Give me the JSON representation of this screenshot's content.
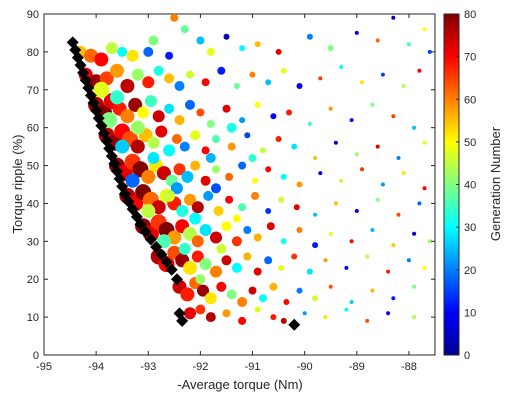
{
  "chart_data": {
    "type": "scatter",
    "xlabel": "-Average torque (Nm)",
    "ylabel": "Torque ripple (%)",
    "xlim": [
      -95,
      -87.5
    ],
    "ylim": [
      0,
      90
    ],
    "xticks": [
      -95,
      -94,
      -93,
      -92,
      -91,
      -90,
      -89,
      -88
    ],
    "xtick_labels": [
      "-95",
      "-94",
      "-93",
      "-92",
      "-91",
      "-90",
      "-89",
      "-88"
    ],
    "yticks": [
      0,
      10,
      20,
      30,
      40,
      50,
      60,
      70,
      80,
      90
    ],
    "ytick_labels": [
      "0",
      "10",
      "20",
      "30",
      "40",
      "50",
      "60",
      "70",
      "80",
      "90"
    ],
    "grid": false,
    "colorbar": {
      "label": "Generation Number",
      "range": [
        0,
        80
      ],
      "ticks": [
        0,
        10,
        20,
        30,
        40,
        50,
        60,
        70,
        80
      ],
      "tick_labels": [
        "0",
        "10",
        "20",
        "30",
        "40",
        "50",
        "60",
        "70",
        "80"
      ],
      "colormap": "jet"
    },
    "pareto_front": {
      "marker": "diamond",
      "color": "#000000",
      "points": [
        [
          -94.45,
          82.5
        ],
        [
          -94.4,
          80.5
        ],
        [
          -94.35,
          78.5
        ],
        [
          -94.3,
          76.5
        ],
        [
          -94.25,
          74.5
        ],
        [
          -94.2,
          72.5
        ],
        [
          -94.15,
          70.5
        ],
        [
          -94.1,
          68.5
        ],
        [
          -94.05,
          66.5
        ],
        [
          -94.0,
          64.5
        ],
        [
          -93.95,
          62.5
        ],
        [
          -93.9,
          60.5
        ],
        [
          -93.85,
          58.5
        ],
        [
          -93.8,
          56.5
        ],
        [
          -93.75,
          54.5
        ],
        [
          -93.7,
          52.5
        ],
        [
          -93.65,
          50.5
        ],
        [
          -93.6,
          48.5
        ],
        [
          -93.55,
          46.5
        ],
        [
          -93.5,
          44.5
        ],
        [
          -93.45,
          42.5
        ],
        [
          -93.38,
          40.5
        ],
        [
          -93.3,
          38.5
        ],
        [
          -93.22,
          36.5
        ],
        [
          -93.15,
          34.5
        ],
        [
          -93.05,
          32.5
        ],
        [
          -92.95,
          30.5
        ],
        [
          -92.85,
          28.5
        ],
        [
          -92.75,
          26.5
        ],
        [
          -92.65,
          24.5
        ],
        [
          -92.55,
          22.5
        ],
        [
          -92.45,
          20.0
        ],
        [
          -92.4,
          11.0
        ],
        [
          -92.35,
          9.0
        ],
        [
          -90.2,
          8.0
        ]
      ]
    },
    "scatter_points": [
      [
        -94.3,
        80,
        55,
        6
      ],
      [
        -94.1,
        79,
        62,
        7
      ],
      [
        -93.9,
        78,
        70,
        7
      ],
      [
        -93.7,
        81,
        45,
        6
      ],
      [
        -93.5,
        80,
        30,
        5
      ],
      [
        -93.3,
        79,
        52,
        6
      ],
      [
        -93.0,
        80,
        18,
        5
      ],
      [
        -92.9,
        83,
        40,
        5
      ],
      [
        -92.5,
        89,
        60,
        4
      ],
      [
        -92.3,
        86,
        38,
        4
      ],
      [
        -92.0,
        83,
        25,
        4
      ],
      [
        -92.6,
        79,
        12,
        4
      ],
      [
        -91.8,
        80,
        48,
        4
      ],
      [
        -91.5,
        84,
        5,
        3
      ],
      [
        -91.2,
        81,
        30,
        3
      ],
      [
        -90.9,
        82,
        55,
        3
      ],
      [
        -90.5,
        80,
        72,
        3
      ],
      [
        -89.9,
        84,
        20,
        3
      ],
      [
        -89.5,
        81,
        40,
        3
      ],
      [
        -89.0,
        85,
        10,
        2
      ],
      [
        -88.6,
        83,
        62,
        2
      ],
      [
        -88.3,
        89,
        5,
        2
      ],
      [
        -88.0,
        82,
        35,
        2
      ],
      [
        -87.7,
        86,
        50,
        2
      ],
      [
        -87.6,
        80,
        15,
        2
      ],
      [
        -94.2,
        74,
        72,
        7
      ],
      [
        -94.0,
        72,
        78,
        8
      ],
      [
        -93.8,
        73,
        65,
        7
      ],
      [
        -93.6,
        75,
        58,
        7
      ],
      [
        -93.4,
        71,
        75,
        7
      ],
      [
        -93.2,
        74,
        42,
        6
      ],
      [
        -93.0,
        72,
        68,
        6
      ],
      [
        -92.8,
        75,
        32,
        5
      ],
      [
        -92.6,
        73,
        55,
        5
      ],
      [
        -92.4,
        71,
        20,
        5
      ],
      [
        -92.2,
        74,
        46,
        4
      ],
      [
        -91.9,
        72,
        70,
        4
      ],
      [
        -91.6,
        75,
        12,
        4
      ],
      [
        -91.3,
        71,
        38,
        3
      ],
      [
        -91.0,
        74,
        60,
        3
      ],
      [
        -90.7,
        72,
        25,
        3
      ],
      [
        -90.4,
        75,
        48,
        3
      ],
      [
        -90.1,
        71,
        8,
        3
      ],
      [
        -89.7,
        73,
        66,
        2
      ],
      [
        -89.3,
        76,
        30,
        2
      ],
      [
        -88.9,
        72,
        52,
        2
      ],
      [
        -88.5,
        74,
        15,
        2
      ],
      [
        -88.1,
        71,
        44,
        2
      ],
      [
        -87.8,
        75,
        70,
        2
      ],
      [
        -94.0,
        66,
        76,
        8
      ],
      [
        -93.85,
        64,
        80,
        8
      ],
      [
        -93.7,
        67,
        72,
        8
      ],
      [
        -93.55,
        65,
        68,
        7
      ],
      [
        -93.4,
        63,
        60,
        7
      ],
      [
        -93.25,
        66,
        78,
        7
      ],
      [
        -93.1,
        64,
        50,
        6
      ],
      [
        -92.95,
        67,
        35,
        6
      ],
      [
        -92.8,
        63,
        74,
        6
      ],
      [
        -92.6,
        65,
        28,
        5
      ],
      [
        -92.4,
        62,
        56,
        5
      ],
      [
        -92.2,
        66,
        18,
        5
      ],
      [
        -92.0,
        64,
        64,
        4
      ],
      [
        -91.8,
        61,
        40,
        4
      ],
      [
        -91.5,
        65,
        72,
        4
      ],
      [
        -91.2,
        62,
        22,
        3
      ],
      [
        -90.9,
        66,
        50,
        3
      ],
      [
        -90.6,
        63,
        10,
        3
      ],
      [
        -90.3,
        64,
        68,
        3
      ],
      [
        -89.9,
        61,
        35,
        2
      ],
      [
        -89.5,
        65,
        58,
        2
      ],
      [
        -89.1,
        62,
        12,
        2
      ],
      [
        -88.7,
        66,
        40,
        2
      ],
      [
        -88.3,
        63,
        65,
        2
      ],
      [
        -87.9,
        60,
        25,
        2
      ],
      [
        -93.8,
        58,
        74,
        8
      ],
      [
        -93.65,
        56,
        79,
        8
      ],
      [
        -93.5,
        59,
        70,
        8
      ],
      [
        -93.35,
        57,
        64,
        8
      ],
      [
        -93.2,
        55,
        76,
        7
      ],
      [
        -93.05,
        58,
        55,
        7
      ],
      [
        -92.9,
        56,
        44,
        6
      ],
      [
        -92.75,
        59,
        72,
        6
      ],
      [
        -92.6,
        54,
        30,
        6
      ],
      [
        -92.45,
        57,
        62,
        5
      ],
      [
        -92.3,
        55,
        20,
        5
      ],
      [
        -92.1,
        58,
        48,
        5
      ],
      [
        -91.9,
        54,
        70,
        4
      ],
      [
        -91.7,
        57,
        36,
        4
      ],
      [
        -91.4,
        55,
        58,
        4
      ],
      [
        -91.1,
        58,
        15,
        3
      ],
      [
        -90.8,
        54,
        45,
        3
      ],
      [
        -90.5,
        57,
        68,
        3
      ],
      [
        -90.2,
        55,
        28,
        3
      ],
      [
        -89.8,
        52,
        55,
        2
      ],
      [
        -89.4,
        56,
        8,
        2
      ],
      [
        -89.0,
        53,
        42,
        2
      ],
      [
        -88.6,
        55,
        72,
        2
      ],
      [
        -88.2,
        52,
        20,
        2
      ],
      [
        -87.7,
        56,
        48,
        2
      ],
      [
        -93.6,
        50,
        78,
        8
      ],
      [
        -93.45,
        48,
        72,
        8
      ],
      [
        -93.3,
        51,
        66,
        8
      ],
      [
        -93.15,
        49,
        80,
        8
      ],
      [
        -93.0,
        47,
        60,
        7
      ],
      [
        -92.85,
        50,
        52,
        7
      ],
      [
        -92.7,
        48,
        74,
        7
      ],
      [
        -92.55,
        46,
        38,
        6
      ],
      [
        -92.4,
        49,
        66,
        6
      ],
      [
        -92.25,
        47,
        25,
        6
      ],
      [
        -92.1,
        50,
        56,
        5
      ],
      [
        -91.9,
        46,
        72,
        5
      ],
      [
        -91.7,
        49,
        42,
        4
      ],
      [
        -91.45,
        47,
        62,
        4
      ],
      [
        -91.2,
        50,
        18,
        4
      ],
      [
        -90.95,
        46,
        50,
        3
      ],
      [
        -90.7,
        49,
        70,
        3
      ],
      [
        -90.4,
        47,
        30,
        3
      ],
      [
        -90.1,
        45,
        58,
        3
      ],
      [
        -89.7,
        48,
        10,
        2
      ],
      [
        -89.3,
        46,
        45,
        2
      ],
      [
        -88.9,
        49,
        66,
        2
      ],
      [
        -88.5,
        45,
        22,
        2
      ],
      [
        -88.1,
        48,
        52,
        2
      ],
      [
        -87.7,
        44,
        70,
        2
      ],
      [
        -93.4,
        42,
        76,
        8
      ],
      [
        -93.25,
        40,
        70,
        8
      ],
      [
        -93.1,
        43,
        80,
        8
      ],
      [
        -92.95,
        41,
        62,
        8
      ],
      [
        -92.8,
        39,
        74,
        7
      ],
      [
        -92.65,
        42,
        48,
        7
      ],
      [
        -92.5,
        40,
        68,
        7
      ],
      [
        -92.35,
        38,
        32,
        6
      ],
      [
        -92.2,
        41,
        58,
        6
      ],
      [
        -92.05,
        39,
        76,
        6
      ],
      [
        -91.85,
        42,
        22,
        5
      ],
      [
        -91.65,
        38,
        54,
        5
      ],
      [
        -91.45,
        41,
        70,
        4
      ],
      [
        -91.2,
        39,
        36,
        4
      ],
      [
        -90.95,
        42,
        60,
        4
      ],
      [
        -90.7,
        38,
        14,
        3
      ],
      [
        -90.45,
        41,
        46,
        3
      ],
      [
        -90.15,
        39,
        72,
        3
      ],
      [
        -89.8,
        37,
        25,
        2
      ],
      [
        -89.4,
        40,
        55,
        2
      ],
      [
        -89.0,
        38,
        8,
        2
      ],
      [
        -88.6,
        41,
        40,
        2
      ],
      [
        -88.2,
        37,
        64,
        2
      ],
      [
        -87.8,
        40,
        18,
        2
      ],
      [
        -93.1,
        34,
        78,
        8
      ],
      [
        -92.95,
        32,
        72,
        8
      ],
      [
        -92.8,
        35,
        66,
        8
      ],
      [
        -92.65,
        33,
        80,
        8
      ],
      [
        -92.5,
        31,
        58,
        7
      ],
      [
        -92.35,
        34,
        70,
        7
      ],
      [
        -92.2,
        32,
        44,
        7
      ],
      [
        -92.05,
        30,
        62,
        6
      ],
      [
        -91.9,
        33,
        28,
        6
      ],
      [
        -91.7,
        31,
        74,
        6
      ],
      [
        -91.5,
        34,
        50,
        5
      ],
      [
        -91.3,
        30,
        66,
        5
      ],
      [
        -91.1,
        33,
        20,
        4
      ],
      [
        -90.9,
        31,
        56,
        4
      ],
      [
        -90.65,
        34,
        72,
        4
      ],
      [
        -90.4,
        30,
        32,
        3
      ],
      [
        -90.1,
        33,
        60,
        3
      ],
      [
        -89.8,
        29,
        12,
        3
      ],
      [
        -89.5,
        32,
        48,
        2
      ],
      [
        -89.1,
        30,
        70,
        2
      ],
      [
        -88.7,
        33,
        24,
        2
      ],
      [
        -88.3,
        29,
        54,
        2
      ],
      [
        -87.9,
        32,
        8,
        2
      ],
      [
        -87.6,
        30,
        42,
        2
      ],
      [
        -92.8,
        26,
        76,
        8
      ],
      [
        -92.65,
        24,
        70,
        8
      ],
      [
        -92.5,
        27,
        64,
        7
      ],
      [
        -92.35,
        25,
        78,
        7
      ],
      [
        -92.2,
        23,
        52,
        7
      ],
      [
        -92.05,
        26,
        68,
        6
      ],
      [
        -91.9,
        24,
        40,
        6
      ],
      [
        -91.7,
        22,
        60,
        6
      ],
      [
        -91.5,
        25,
        74,
        5
      ],
      [
        -91.3,
        23,
        30,
        5
      ],
      [
        -91.1,
        26,
        56,
        4
      ],
      [
        -90.9,
        22,
        72,
        4
      ],
      [
        -90.7,
        25,
        18,
        4
      ],
      [
        -90.45,
        23,
        48,
        3
      ],
      [
        -90.2,
        26,
        66,
        3
      ],
      [
        -89.9,
        22,
        28,
        3
      ],
      [
        -89.6,
        25,
        58,
        2
      ],
      [
        -89.2,
        23,
        10,
        2
      ],
      [
        -88.8,
        26,
        44,
        2
      ],
      [
        -88.4,
        22,
        68,
        2
      ],
      [
        -88.0,
        25,
        20,
        2
      ],
      [
        -87.7,
        23,
        50,
        2
      ],
      [
        -92.4,
        18,
        74,
        7
      ],
      [
        -92.25,
        16,
        68,
        7
      ],
      [
        -92.1,
        19,
        62,
        6
      ],
      [
        -91.95,
        17,
        78,
        6
      ],
      [
        -91.8,
        15,
        52,
        6
      ],
      [
        -91.6,
        18,
        70,
        5
      ],
      [
        -91.4,
        16,
        40,
        5
      ],
      [
        -91.2,
        14,
        60,
        5
      ],
      [
        -91.0,
        17,
        74,
        4
      ],
      [
        -90.8,
        15,
        30,
        4
      ],
      [
        -90.6,
        18,
        56,
        4
      ],
      [
        -90.35,
        14,
        70,
        3
      ],
      [
        -90.1,
        17,
        20,
        3
      ],
      [
        -89.8,
        15,
        46,
        3
      ],
      [
        -89.5,
        18,
        64,
        2
      ],
      [
        -89.1,
        14,
        26,
        2
      ],
      [
        -88.7,
        17,
        56,
        2
      ],
      [
        -88.3,
        15,
        12,
        2
      ],
      [
        -87.9,
        18,
        40,
        2
      ],
      [
        -92.2,
        11,
        72,
        6
      ],
      [
        -92.0,
        12,
        66,
        5
      ],
      [
        -91.8,
        10,
        76,
        5
      ],
      [
        -91.5,
        11,
        58,
        4
      ],
      [
        -91.2,
        9,
        70,
        4
      ],
      [
        -90.9,
        12,
        48,
        3
      ],
      [
        -90.6,
        10,
        68,
        3
      ],
      [
        -90.4,
        9,
        76,
        3
      ],
      [
        -90.0,
        11,
        22,
        2
      ],
      [
        -89.6,
        10,
        52,
        2
      ],
      [
        -89.2,
        12,
        30,
        2
      ],
      [
        -88.8,
        9,
        64,
        2
      ],
      [
        -88.4,
        11,
        10,
        2
      ],
      [
        -87.9,
        10,
        44,
        2
      ],
      [
        -93.75,
        62,
        40,
        8
      ],
      [
        -93.5,
        55,
        26,
        7
      ],
      [
        -93.3,
        46,
        18,
        7
      ],
      [
        -93.0,
        38,
        45,
        7
      ],
      [
        -92.7,
        30,
        36,
        7
      ],
      [
        -92.45,
        44,
        22,
        6
      ],
      [
        -92.1,
        36,
        30,
        6
      ],
      [
        -91.8,
        52,
        24,
        5
      ],
      [
        -91.6,
        28,
        46,
        5
      ],
      [
        -91.4,
        60,
        32,
        5
      ],
      [
        -93.9,
        70,
        48,
        8
      ],
      [
        -93.6,
        68,
        34,
        7
      ],
      [
        -93.2,
        60,
        42,
        7
      ],
      [
        -92.9,
        52,
        28,
        6
      ],
      [
        -92.6,
        42,
        46,
        6
      ],
      [
        -92.3,
        28,
        34,
        6
      ],
      [
        -92.0,
        20,
        42,
        5
      ],
      [
        -91.7,
        44,
        16,
        5
      ],
      [
        -91.3,
        36,
        50,
        4
      ],
      [
        -91.0,
        52,
        34,
        4
      ]
    ]
  }
}
